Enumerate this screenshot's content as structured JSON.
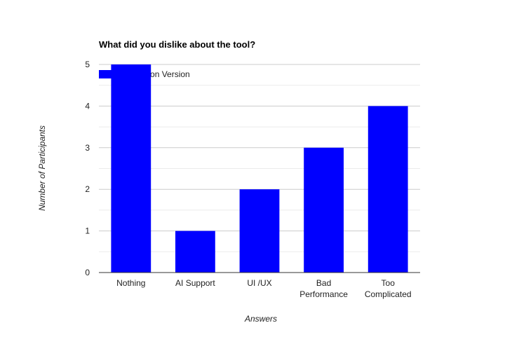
{
  "chart_data": {
    "type": "bar",
    "title": "What did you dislike about the tool?",
    "xlabel": "Answers",
    "ylabel": "Number of Participants",
    "categories": [
      [
        "Nothing"
      ],
      [
        "AI Support"
      ],
      [
        "UI /UX"
      ],
      [
        "Bad",
        "Performance"
      ],
      [
        "Too",
        "Complicated"
      ]
    ],
    "series": [
      {
        "name": "Solution Version",
        "values": [
          5,
          1,
          2,
          3,
          4
        ],
        "color": "#0000ff"
      }
    ],
    "ylim": [
      0,
      5
    ],
    "yticks": [
      "0",
      "1",
      "2",
      "3",
      "4",
      "5"
    ],
    "grid": true,
    "legend_position": "top-left"
  }
}
